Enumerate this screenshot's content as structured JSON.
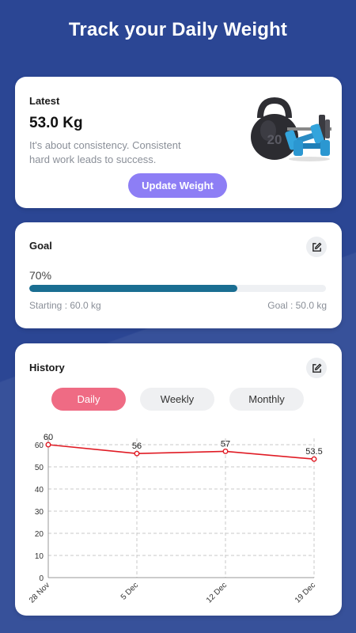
{
  "header": {
    "title": "Track your Daily Weight"
  },
  "latest": {
    "label": "Latest",
    "value": "53.0 Kg",
    "message": "It's about consistency. Consistent hard work leads to success.",
    "button_label": "Update Weight",
    "illustration": "kettlebell-dumbbells-image"
  },
  "goal": {
    "label": "Goal",
    "progress_text": "70%",
    "progress": 0.7,
    "starting": "Starting : 60.0 kg",
    "target": "Goal : 50.0 kg",
    "edit_icon": "edit-icon"
  },
  "history": {
    "label": "History",
    "edit_icon": "edit-icon",
    "tabs": [
      {
        "label": "Daily",
        "active": true
      },
      {
        "label": "Weekly",
        "active": false
      },
      {
        "label": "Monthly",
        "active": false
      }
    ]
  },
  "colors": {
    "background": "#2b4694",
    "accent_purple": "#8d7ef5",
    "progress": "#1a6e92",
    "active_tab": "#ef6b84",
    "series_line": "#e01b24"
  },
  "chart_data": {
    "type": "line",
    "categories": [
      "28 Nov",
      "5 Dec",
      "12 Dec",
      "19 Dec"
    ],
    "values": [
      60,
      56,
      57,
      53.5
    ],
    "data_labels": [
      "60",
      "56",
      "57",
      "53.5"
    ],
    "yticks": [
      "0",
      "10",
      "20",
      "30",
      "40",
      "50",
      "60"
    ],
    "ylim": [
      0,
      60
    ],
    "grid": true,
    "legend": "none"
  }
}
